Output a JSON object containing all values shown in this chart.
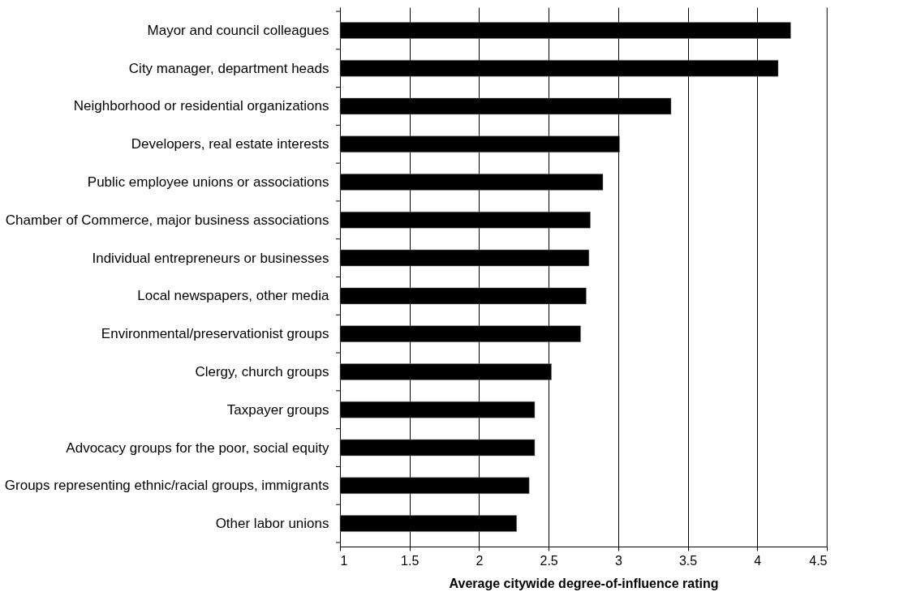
{
  "chart_data": {
    "type": "bar",
    "orientation": "horizontal",
    "xlabel": "Average citywide degree-of-influence rating",
    "categories": [
      "Mayor and council colleagues",
      "City manager, department heads",
      "Neighborhood or residential organizations",
      "Developers, real estate interests",
      "Public employee unions or associations",
      "Chamber of Commerce, major business associations",
      "Individual entrepreneurs or businesses",
      "Local newspapers, other media",
      "Environmental/preservationist groups",
      "Clergy, church groups",
      "Taxpayer groups",
      "Advocacy groups for the poor, social equity",
      "Groups representing ethnic/racial groups, immigrants",
      "Other labor unions"
    ],
    "values": [
      4.24,
      4.15,
      3.38,
      3.01,
      2.89,
      2.8,
      2.79,
      2.77,
      2.73,
      2.52,
      2.4,
      2.4,
      2.36,
      2.27
    ],
    "color": "#000000",
    "xlim": [
      1,
      4.5
    ],
    "xticks": [
      1,
      1.5,
      2,
      2.5,
      3,
      3.5,
      4,
      4.5
    ],
    "grid": "x"
  }
}
